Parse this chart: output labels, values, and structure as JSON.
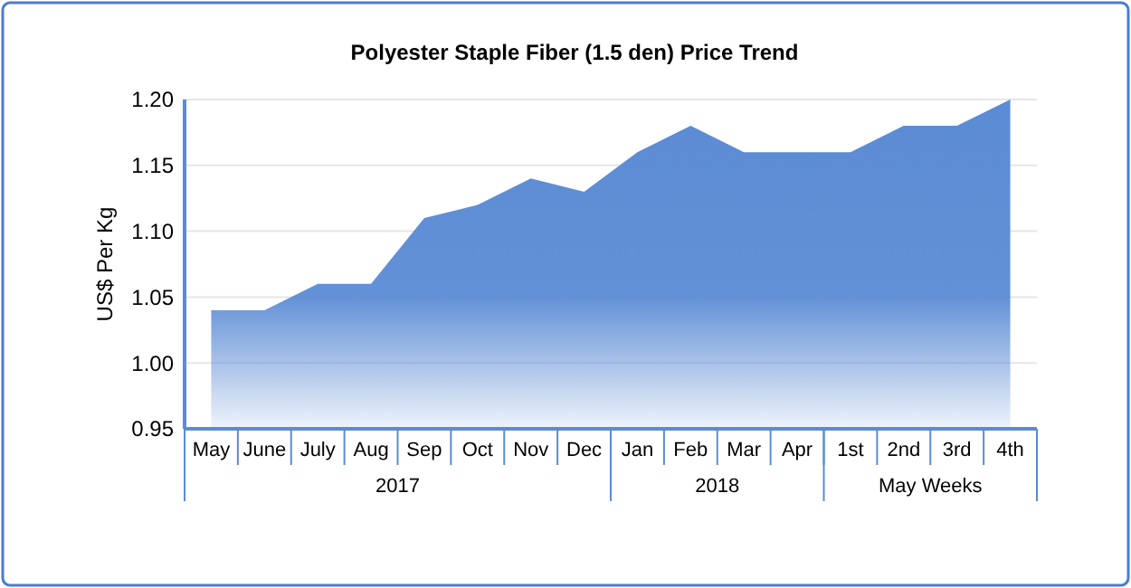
{
  "chart_data": {
    "type": "area",
    "title": "Polyester Staple Fiber (1.5 den) Price Trend",
    "ylabel": "US$ Per Kg",
    "categories": [
      "May",
      "June",
      "July",
      "Aug",
      "Sep",
      "Oct",
      "Nov",
      "Dec",
      "Jan",
      "Feb",
      "Mar",
      "Apr",
      "1st",
      "2nd",
      "3rd",
      "4th"
    ],
    "values": [
      1.04,
      1.04,
      1.06,
      1.06,
      1.11,
      1.12,
      1.14,
      1.13,
      1.16,
      1.18,
      1.16,
      1.16,
      1.16,
      1.18,
      1.18,
      1.2
    ],
    "color": "#5b8bd4",
    "ylim": [
      0.95,
      1.2
    ],
    "yticks": [
      {
        "value": 0.95,
        "label": "0.95"
      },
      {
        "value": 1.0,
        "label": "1.00"
      },
      {
        "value": 1.05,
        "label": "1.05"
      },
      {
        "value": 1.1,
        "label": "1.10"
      },
      {
        "value": 1.15,
        "label": "1.15"
      },
      {
        "value": 1.2,
        "label": "1.20"
      }
    ],
    "grid": "y",
    "annotations": [
      "2017",
      "2018",
      "May Weeks"
    ]
  }
}
